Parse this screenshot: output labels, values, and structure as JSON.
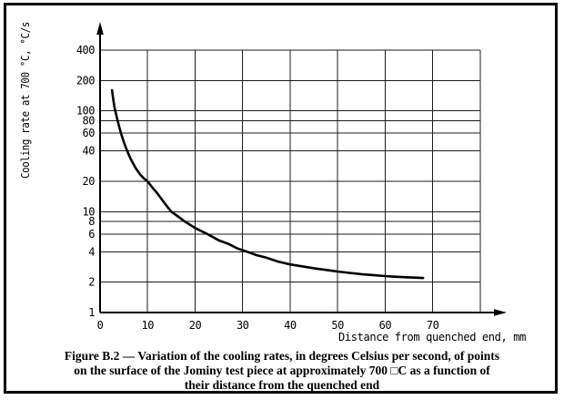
{
  "figure": {
    "caption_lines": [
      "Figure B.2 — Variation of the cooling rates, in degrees Celsius per second, of points",
      "on the surface of the Jominy test piece at approximately 700 □C as a function of",
      "their distance from the quenched end"
    ]
  },
  "chart_data": {
    "type": "line",
    "title": "",
    "xlabel": "Distance from quenched end, mm",
    "ylabel": "Cooling rate at 700 °C, °C/s",
    "x_scale": "linear",
    "y_scale": "log",
    "xlim": [
      0,
      80
    ],
    "ylim": [
      1,
      400
    ],
    "grid": true,
    "legend": "none",
    "x_gridlines": [
      0,
      10,
      20,
      30,
      40,
      50,
      60,
      70,
      80
    ],
    "x_tick_labels": [
      "0",
      "10",
      "20",
      "30",
      "40",
      "50",
      "60",
      "70"
    ],
    "y_ticks": [
      1,
      2,
      4,
      6,
      8,
      10,
      20,
      40,
      60,
      80,
      100,
      200,
      400
    ],
    "series": [
      {
        "name": "cooling-rate-curve",
        "points": [
          [
            2.5,
            160
          ],
          [
            3,
            110
          ],
          [
            3.5,
            87
          ],
          [
            4,
            70
          ],
          [
            4.5,
            58
          ],
          [
            5,
            49
          ],
          [
            5.7,
            40
          ],
          [
            6.5,
            33
          ],
          [
            7.5,
            27
          ],
          [
            8.5,
            23.2
          ],
          [
            9.3,
            21.2
          ],
          [
            10,
            20
          ],
          [
            11,
            17.4
          ],
          [
            12,
            15.3
          ],
          [
            13.5,
            12.3
          ],
          [
            15,
            10
          ],
          [
            16.5,
            8.9
          ],
          [
            17.8,
            8
          ],
          [
            20,
            6.9
          ],
          [
            22.6,
            6
          ],
          [
            25,
            5.2
          ],
          [
            27,
            4.8
          ],
          [
            29,
            4.3
          ],
          [
            31,
            4
          ],
          [
            33,
            3.7
          ],
          [
            35,
            3.5
          ],
          [
            37.5,
            3.2
          ],
          [
            40,
            3.0
          ],
          [
            42.5,
            2.87
          ],
          [
            45,
            2.75
          ],
          [
            47.5,
            2.65
          ],
          [
            50,
            2.55
          ],
          [
            52.5,
            2.47
          ],
          [
            55,
            2.4
          ],
          [
            57.5,
            2.35
          ],
          [
            60,
            2.3
          ],
          [
            62.5,
            2.26
          ],
          [
            65,
            2.23
          ],
          [
            68,
            2.2
          ]
        ]
      }
    ],
    "colors": {
      "curve": "#000000",
      "grid": "#1c1c1c",
      "axis": "#000000"
    }
  }
}
